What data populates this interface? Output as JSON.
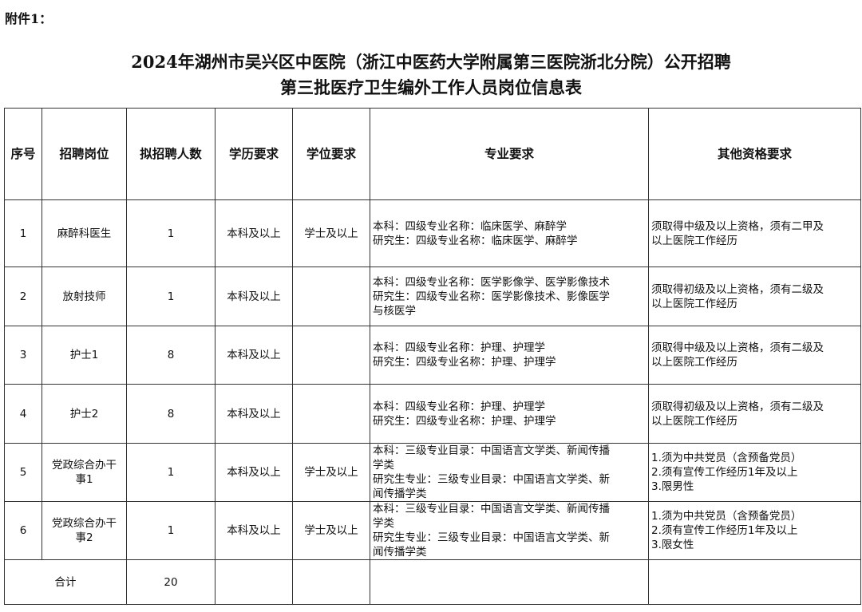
{
  "attachment": "附件1：",
  "title_line1": "2024年湖州市吴兴区中医院（浙江中医药大学附属第三医院浙北分院）公开招聘",
  "title_line2": "第三批医疗卫生编外工作人员岗位信息表",
  "headers": [
    "序号",
    "招聘岗位",
    "拟招聘人数",
    "学历要求",
    "学位要求",
    "专业要求",
    "其他资格要求"
  ],
  "rows": [
    {
      "no": "1",
      "post": "麻醉科医生",
      "count": "1",
      "edu": "本科及以上",
      "degree": "学士及以上",
      "major": "本科：四级专业名称：临床医学、麻醉学\n研究生：四级专业名称：临床医学、麻醉学",
      "other": "须取得中级及以上资格，须有二甲及\n以上医院工作经历"
    },
    {
      "no": "2",
      "post": "放射技师",
      "count": "1",
      "edu": "本科及以上",
      "degree": "",
      "major": "本科：四级专业名称：医学影像学、医学影像技术\n研究生：四级专业名称：医学影像技术、影像医学\n与核医学",
      "other": "须取得初级及以上资格，须有二级及\n以上医院工作经历"
    },
    {
      "no": "3",
      "post": "护士1",
      "count": "8",
      "edu": "本科及以上",
      "degree": "",
      "major": "本科：四级专业名称：护理、护理学\n研究生：四级专业名称：护理、护理学",
      "other": "须取得中级及以上资格，须有二级及\n以上医院工作经历"
    },
    {
      "no": "4",
      "post": "护士2",
      "count": "8",
      "edu": "本科及以上",
      "degree": "",
      "major": "本科：四级专业名称：护理、护理学\n研究生：四级专业名称：护理、护理学",
      "other": "须取得初级及以上资格，须有二级及\n以上医院工作经历"
    },
    {
      "no": "5",
      "post": "党政综合办干\n事1",
      "count": "1",
      "edu": "本科及以上",
      "degree": "学士及以上",
      "major": "本科：三级专业目录：中国语言文学类、新闻传播\n学类\n研究生专业：三级专业目录：中国语言文学类、新\n闻传播学类",
      "other": "1.须为中共党员（含预备党员）\n2.须有宣传工作经历1年及以上\n3.限男性"
    },
    {
      "no": "6",
      "post": "党政综合办干\n事2",
      "count": "1",
      "edu": "本科及以上",
      "degree": "学士及以上",
      "major": "本科：三级专业目录：中国语言文学类、新闻传播\n学类\n研究生专业：三级专业目录：中国语言文学类、新\n闻传播学类",
      "other": "1.须为中共党员（含预备党员）\n2.须有宣传工作经历1年及以上\n3.限女性"
    }
  ],
  "total_label": "合计",
  "total_count": "20"
}
